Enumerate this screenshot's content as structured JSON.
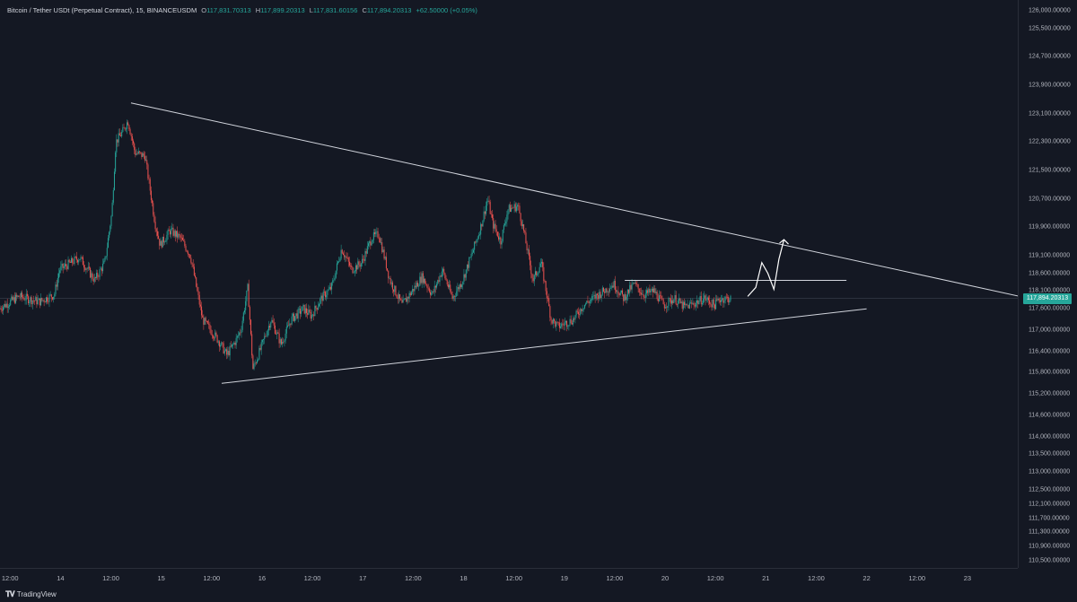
{
  "header": {
    "symbol": "Bitcoin / Tether USDt (Perpetual Contract), 15, BINANCEUSDM",
    "open_key": "O",
    "open": "117,831.70313",
    "high_key": "H",
    "high": "117,899.20313",
    "low_key": "L",
    "low": "117,831.60156",
    "close_key": "C",
    "close": "117,894.20313",
    "change": "+62.50000 (+0.05%)"
  },
  "brand": {
    "name": "TradingView",
    "icon": "tradingview-logo-icon"
  },
  "colors": {
    "up": "#26a69a",
    "down": "#ef5350",
    "background": "#141823",
    "trendline": "#d1d4dc"
  },
  "chart_data": {
    "type": "candlestick",
    "title": "",
    "last_price_label": "117,894.20313",
    "y_axis": {
      "range": [
        110300,
        126300
      ],
      "ticks": [
        "126,000.00000",
        "125,500.00000",
        "124,700.00000",
        "123,900.00000",
        "123,100.00000",
        "122,300.00000",
        "121,500.00000",
        "120,700.00000",
        "119,900.00000",
        "119,100.00000",
        "118,600.00000",
        "118,100.00000",
        "117,600.00000",
        "117,000.00000",
        "116,400.00000",
        "115,800.00000",
        "115,200.00000",
        "114,600.00000",
        "114,000.00000",
        "113,500.00000",
        "113,000.00000",
        "112,500.00000",
        "112,100.00000",
        "111,700.00000",
        "111,300.00000",
        "110,900.00000",
        "110,500.00000"
      ],
      "tick_values": [
        126000,
        125500,
        124700,
        123900,
        123100,
        122300,
        121500,
        120700,
        119900,
        119100,
        118600,
        118100,
        117600,
        117000,
        116400,
        115800,
        115200,
        114600,
        114000,
        113500,
        113000,
        112500,
        112100,
        111700,
        111300,
        110900,
        110500
      ]
    },
    "x_axis": {
      "range_days": [
        13.4,
        23.5
      ],
      "ticks": [
        "12:00",
        "14",
        "12:00",
        "15",
        "12:00",
        "16",
        "12:00",
        "17",
        "12:00",
        "18",
        "12:00",
        "19",
        "12:00",
        "20",
        "12:00",
        "21",
        "12:00",
        "22",
        "12:00",
        "23"
      ],
      "tick_values": [
        13.5,
        14,
        14.5,
        15,
        15.5,
        16,
        16.5,
        17,
        17.5,
        18,
        18.5,
        19,
        19.5,
        20,
        20.5,
        21,
        21.5,
        22,
        22.5,
        23
      ]
    },
    "price_anchors": [
      [
        13.4,
        117600
      ],
      [
        13.6,
        117950
      ],
      [
        13.8,
        117800
      ],
      [
        13.95,
        118000
      ],
      [
        14.0,
        118700
      ],
      [
        14.2,
        119050
      ],
      [
        14.35,
        118400
      ],
      [
        14.45,
        118900
      ],
      [
        14.52,
        120300
      ],
      [
        14.56,
        122300
      ],
      [
        14.63,
        122600
      ],
      [
        14.68,
        122900
      ],
      [
        14.75,
        122000
      ],
      [
        14.85,
        121900
      ],
      [
        14.95,
        120000
      ],
      [
        15.0,
        119400
      ],
      [
        15.1,
        119800
      ],
      [
        15.2,
        119600
      ],
      [
        15.3,
        119100
      ],
      [
        15.42,
        117300
      ],
      [
        15.5,
        117000
      ],
      [
        15.58,
        116700
      ],
      [
        15.66,
        116300
      ],
      [
        15.75,
        116700
      ],
      [
        15.8,
        117000
      ],
      [
        15.87,
        118200
      ],
      [
        15.92,
        115900
      ],
      [
        16.0,
        116500
      ],
      [
        16.1,
        117300
      ],
      [
        16.2,
        116600
      ],
      [
        16.3,
        117300
      ],
      [
        16.42,
        117600
      ],
      [
        16.5,
        117400
      ],
      [
        16.6,
        117900
      ],
      [
        16.7,
        118200
      ],
      [
        16.8,
        119300
      ],
      [
        16.9,
        118700
      ],
      [
        17.0,
        118900
      ],
      [
        17.1,
        119600
      ],
      [
        17.17,
        119700
      ],
      [
        17.28,
        118400
      ],
      [
        17.4,
        117700
      ],
      [
        17.5,
        118100
      ],
      [
        17.6,
        118500
      ],
      [
        17.7,
        118000
      ],
      [
        17.8,
        118700
      ],
      [
        17.9,
        117900
      ],
      [
        18.0,
        118400
      ],
      [
        18.1,
        119200
      ],
      [
        18.18,
        119900
      ],
      [
        18.25,
        120700
      ],
      [
        18.3,
        120000
      ],
      [
        18.38,
        119500
      ],
      [
        18.45,
        120400
      ],
      [
        18.55,
        120500
      ],
      [
        18.6,
        119900
      ],
      [
        18.7,
        118400
      ],
      [
        18.78,
        118900
      ],
      [
        18.88,
        117300
      ],
      [
        18.95,
        117100
      ],
      [
        19.1,
        117300
      ],
      [
        19.2,
        117700
      ],
      [
        19.3,
        117900
      ],
      [
        19.4,
        118100
      ],
      [
        19.5,
        118300
      ],
      [
        19.6,
        117900
      ],
      [
        19.7,
        118300
      ],
      [
        19.8,
        118000
      ],
      [
        19.9,
        118100
      ],
      [
        20.0,
        117700
      ],
      [
        20.1,
        117900
      ],
      [
        20.2,
        117650
      ],
      [
        20.3,
        117750
      ],
      [
        20.4,
        117900
      ],
      [
        20.5,
        117700
      ],
      [
        20.55,
        117880
      ],
      [
        20.66,
        117894
      ]
    ],
    "trendlines": [
      {
        "from": [
          14.7,
          123400
        ],
        "to": [
          23.6,
          117900
        ]
      },
      {
        "from": [
          15.6,
          115500
        ],
        "to": [
          22.0,
          117600
        ]
      },
      {
        "from": [
          19.6,
          118400
        ],
        "to": [
          21.8,
          118400
        ]
      }
    ],
    "annotation_arrow": {
      "points": [
        [
          20.82,
          117950
        ],
        [
          20.9,
          118200
        ],
        [
          20.96,
          118900
        ],
        [
          21.02,
          118600
        ],
        [
          21.08,
          118150
        ],
        [
          21.13,
          119000
        ],
        [
          21.18,
          119550
        ]
      ]
    },
    "last_price": 117894.20313
  }
}
